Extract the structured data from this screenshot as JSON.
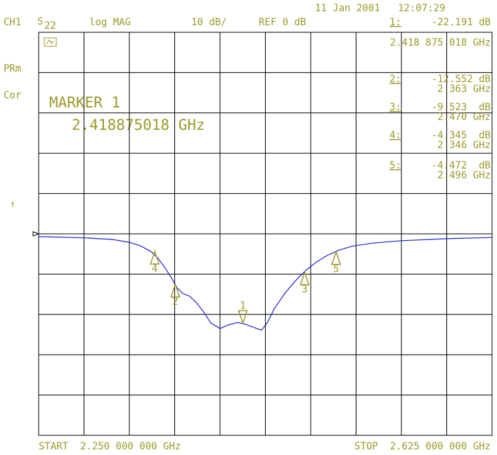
{
  "chart_data": {
    "type": "line",
    "timestamp": "11 Jan 2001   12:07:29",
    "channel": "CH1",
    "parameter": {
      "base": "S",
      "sub": "22"
    },
    "format": "log MAG",
    "scale": "10 dB/",
    "reference": "REF 0 dB",
    "status": [
      "PRm",
      "Cor"
    ],
    "active_marker_title": "MARKER 1",
    "active_marker_freq": "2.418875018 GHz",
    "start_label": "START  2.250 000 000 GHz",
    "stop_label": "STOP  2.625 000 000 GHz",
    "side_arrow": "↑",
    "xlim": [
      2.25,
      2.625
    ],
    "ylim": [
      -50,
      50
    ],
    "xticks": [
      2.25,
      2.2875,
      2.325,
      2.3625,
      2.4,
      2.4375,
      2.475,
      2.5125,
      2.55,
      2.5875,
      2.625
    ],
    "yticks": [
      -50,
      -40,
      -30,
      -20,
      -10,
      0,
      10,
      20,
      30,
      40,
      50
    ],
    "grid": true,
    "color": "#2020d0",
    "text_color": "#9a9a2a",
    "x": [
      2.25,
      2.2878,
      2.311,
      2.325,
      2.3343,
      2.343,
      2.3488,
      2.3547,
      2.3605,
      2.3645,
      2.3692,
      2.375,
      2.3808,
      2.3866,
      2.3924,
      2.4,
      2.407,
      2.4145,
      2.4215,
      2.4285,
      2.4343,
      2.439,
      2.4448,
      2.4535,
      2.4622,
      2.4709,
      2.4797,
      2.4884,
      2.4971,
      2.5087,
      2.5262,
      2.55,
      2.5878,
      2.625
    ],
    "series": [
      {
        "color": "#2020d0",
        "values": [
          -0.7,
          -1.0,
          -1.4,
          -2.1,
          -3.0,
          -4.4,
          -6.1,
          -8.5,
          -11.3,
          -13.4,
          -14.8,
          -15.5,
          -17.2,
          -19.5,
          -22.1,
          -23.5,
          -22.6,
          -22.0,
          -22.5,
          -23.3,
          -23.9,
          -22.1,
          -18.6,
          -14.8,
          -11.7,
          -9.1,
          -7.0,
          -5.4,
          -4.2,
          -3.1,
          -2.3,
          -1.7,
          -1.2,
          -0.9
        ]
      }
    ],
    "markers": [
      {
        "name": "1",
        "key": "1:",
        "x": 2.418875018,
        "x_label": "2.418 875 018 GHz",
        "value": -22.191,
        "value_label": "-22.191 dB"
      },
      {
        "name": "2",
        "key": "2:",
        "x": 2.363,
        "x_label": "2.363 GHz",
        "value": -12.552,
        "value_label": "-12.552 dB"
      },
      {
        "name": "3",
        "key": "3:",
        "x": 2.47,
        "x_label": "2.470 GHz",
        "value": -9.523,
        "value_label": "-9.523  dB"
      },
      {
        "name": "4",
        "key": "4:",
        "x": 2.346,
        "x_label": "2.346 GHz",
        "value": -4.345,
        "value_label": "-4.345  dB"
      },
      {
        "name": "5",
        "key": "5:",
        "x": 2.496,
        "x_label": "2.496 GHz",
        "value": -4.472,
        "value_label": "-4.472  dB"
      }
    ]
  }
}
